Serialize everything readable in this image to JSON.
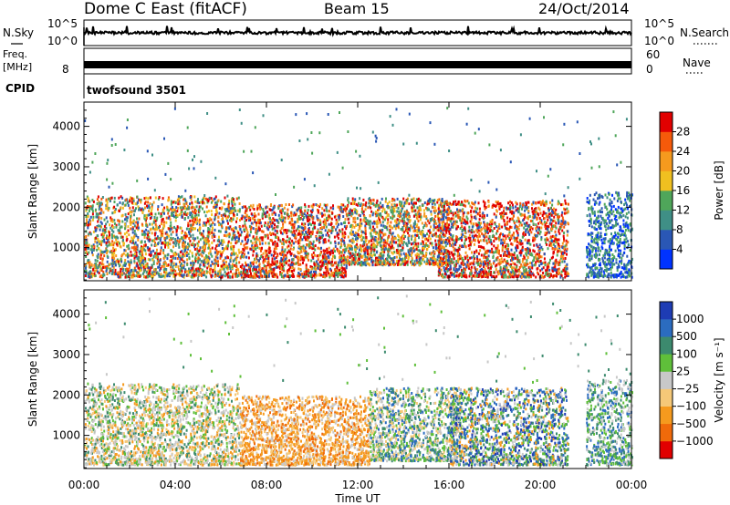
{
  "header": {
    "radar_title": "Dome C East (fitACF)",
    "beam": "Beam 15",
    "date": "24/Oct/2014"
  },
  "noise_panel": {
    "left_label": "N.Sky",
    "right_label": "N.Search",
    "left_ticks": [
      "10^5",
      "10^0"
    ],
    "right_ticks": [
      "10^5",
      "10^0"
    ]
  },
  "freq_panel": {
    "left_label_line1": "Freq.",
    "left_label_line2": "[MHz]",
    "left_tick": "8",
    "right_label": "Nave",
    "right_ticks": [
      "60",
      "0"
    ]
  },
  "cpid": {
    "label": "CPID",
    "value": "twofsound 3501"
  },
  "chart_data": [
    {
      "type": "heatmap",
      "title": "",
      "xlabel": "",
      "ylabel": "Slant Range [km]",
      "xlim_hours": [
        0,
        24
      ],
      "ylim_km": [
        180,
        4600
      ],
      "y_ticks": [
        1000,
        2000,
        3000,
        4000
      ],
      "colorbar": {
        "label": "Power [dB]",
        "ticks": [
          4,
          8,
          12,
          16,
          20,
          24,
          28
        ],
        "colors": [
          "#0033ff",
          "#2a57b5",
          "#3f8f86",
          "#4fa65a",
          "#f0c020",
          "#f59a1e",
          "#f55a0a",
          "#e10000"
        ]
      },
      "scatter_regions": [
        {
          "t0": 0.0,
          "t1": 6.8,
          "r0": 300,
          "r1": 2300,
          "level": "mixed"
        },
        {
          "t0": 6.8,
          "t1": 11.5,
          "r0": 300,
          "r1": 2100,
          "level": "high"
        },
        {
          "t0": 11.5,
          "t1": 16.0,
          "r0": 600,
          "r1": 2250,
          "level": "mixed"
        },
        {
          "t0": 15.5,
          "t1": 21.2,
          "r0": 300,
          "r1": 2200,
          "level": "high"
        },
        {
          "t0": 22.0,
          "t1": 24.0,
          "r0": 300,
          "r1": 2400,
          "level": "low"
        }
      ]
    },
    {
      "type": "heatmap",
      "title": "",
      "xlabel": "Time UT",
      "ylabel": "Slant Range [km]",
      "xlim_hours": [
        0,
        24
      ],
      "ylim_km": [
        180,
        4600
      ],
      "y_ticks": [
        1000,
        2000,
        3000,
        4000
      ],
      "x_ticks": [
        "00:00",
        "04:00",
        "08:00",
        "12:00",
        "16:00",
        "20:00",
        "00:00"
      ],
      "colorbar": {
        "label": "Velocity [m s⁻¹]",
        "ticks": [
          "1000",
          "500",
          "100",
          "25",
          "−25",
          "−100",
          "−500",
          "−1000"
        ],
        "colors": [
          "#1e3cb4",
          "#2b6cc0",
          "#3c8a6e",
          "#5fbf3a",
          "#c8c8c8",
          "#f5c878",
          "#f59a1e",
          "#f06a0a",
          "#e10000"
        ]
      },
      "scatter_regions": [
        {
          "t0": 0.0,
          "t1": 6.8,
          "r0": 300,
          "r1": 2300,
          "level": "mixed_green_grey"
        },
        {
          "t0": 6.8,
          "t1": 12.5,
          "r0": 300,
          "r1": 2000,
          "level": "orange"
        },
        {
          "t0": 12.5,
          "t1": 16.5,
          "r0": 400,
          "r1": 2200,
          "level": "green_grey"
        },
        {
          "t0": 16.0,
          "t1": 21.2,
          "r0": 300,
          "r1": 2200,
          "level": "blue_green"
        },
        {
          "t0": 22.0,
          "t1": 24.0,
          "r0": 300,
          "r1": 2400,
          "level": "green"
        }
      ]
    }
  ]
}
